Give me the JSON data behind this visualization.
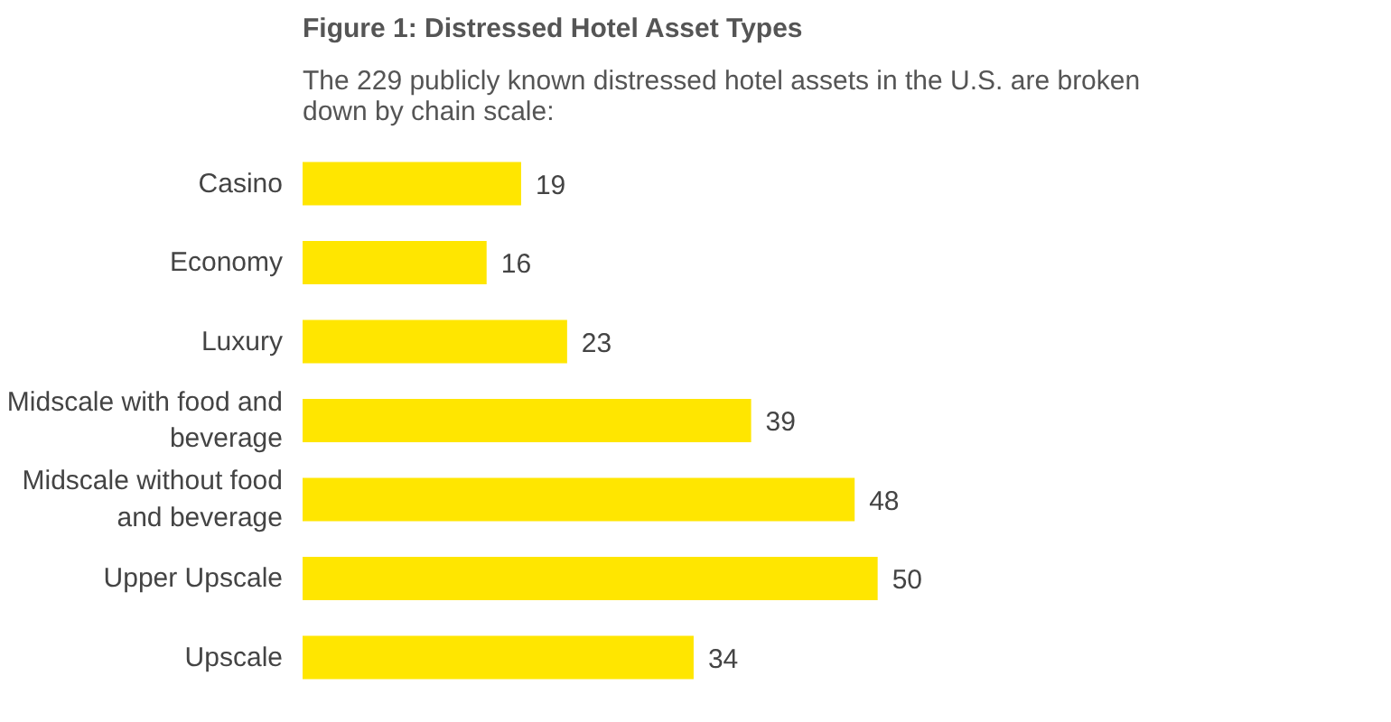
{
  "chart_data": {
    "type": "bar",
    "orientation": "horizontal",
    "title": "Figure 1: Distressed Hotel Asset Types",
    "subtitle": "The 229 publicly known distressed hotel assets in the U.S. are broken down by chain scale:",
    "categories": [
      "Casino",
      "Economy",
      "Luxury",
      "Midscale with food and beverage",
      "Midscale without food and beverage",
      "Upper Upscale",
      "Upscale"
    ],
    "values": [
      19,
      16,
      23,
      39,
      48,
      50,
      34
    ],
    "color": "#ffe600",
    "data_labels": true,
    "tick_labels": "y"
  }
}
